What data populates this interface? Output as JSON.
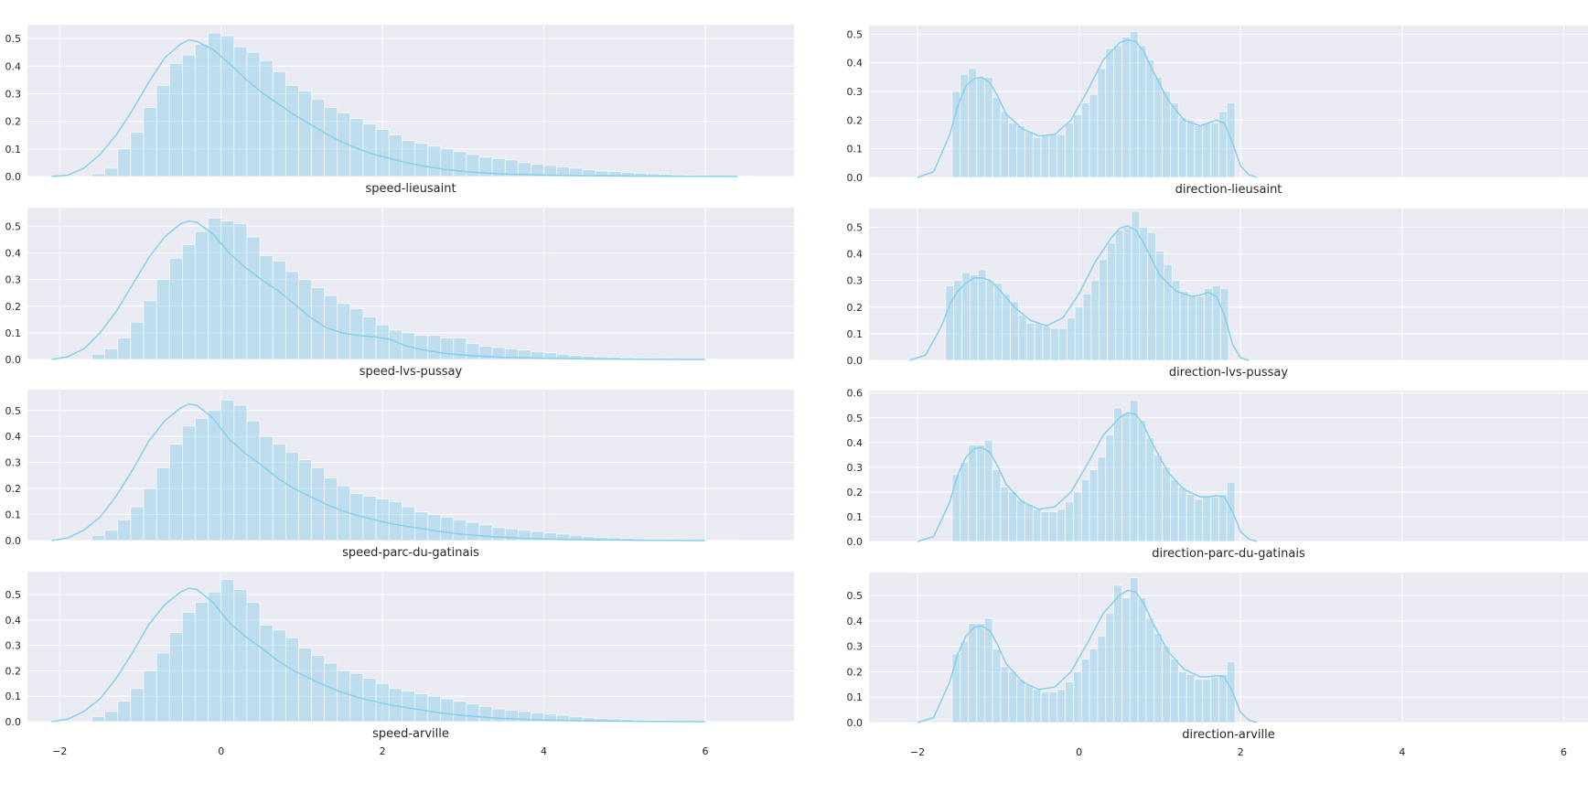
{
  "figure": {
    "background": "#ffffff",
    "axes_face": "#eaeaf2",
    "grid_color": "#ffffff",
    "hist_color": "#87ceeb",
    "hist_alpha": 0.45,
    "kde_color": "#87ceeb"
  },
  "chart_data": [
    {
      "type": "bar",
      "variant": "histogram+kde",
      "xlabel": "speed-lieusaint",
      "xlim": [
        -2.4,
        7.1
      ],
      "ylim": [
        0,
        0.55
      ],
      "yticks": [
        0.0,
        0.1,
        0.2,
        0.3,
        0.4,
        0.5
      ],
      "xticks": [
        -2,
        0,
        2,
        4,
        6
      ],
      "show_xticklabels": false,
      "hist": {
        "x_start": -1.6,
        "bin_width": 0.16,
        "values": [
          0.01,
          0.03,
          0.1,
          0.16,
          0.25,
          0.33,
          0.41,
          0.44,
          0.48,
          0.52,
          0.51,
          0.47,
          0.45,
          0.42,
          0.38,
          0.33,
          0.31,
          0.28,
          0.25,
          0.23,
          0.21,
          0.19,
          0.17,
          0.15,
          0.13,
          0.12,
          0.11,
          0.1,
          0.09,
          0.08,
          0.07,
          0.065,
          0.06,
          0.05,
          0.045,
          0.04,
          0.035,
          0.03,
          0.025,
          0.02,
          0.018,
          0.015,
          0.012,
          0.01,
          0.008,
          0.006,
          0.004,
          0.003,
          0.002,
          0.002,
          0.001,
          0.001
        ]
      },
      "kde": {
        "x": [
          -2.1,
          -1.9,
          -1.7,
          -1.5,
          -1.3,
          -1.1,
          -0.9,
          -0.7,
          -0.5,
          -0.4,
          -0.3,
          -0.1,
          0.1,
          0.3,
          0.5,
          0.7,
          0.9,
          1.1,
          1.3,
          1.5,
          1.7,
          1.9,
          2.1,
          2.3,
          2.5,
          2.8,
          3.1,
          3.5,
          4.0,
          4.5,
          5.0,
          5.5,
          6.0,
          6.4
        ],
        "y": [
          0.0,
          0.005,
          0.03,
          0.08,
          0.15,
          0.24,
          0.34,
          0.43,
          0.48,
          0.495,
          0.49,
          0.46,
          0.41,
          0.355,
          0.305,
          0.265,
          0.225,
          0.19,
          0.155,
          0.125,
          0.1,
          0.08,
          0.065,
          0.05,
          0.038,
          0.025,
          0.016,
          0.009,
          0.005,
          0.003,
          0.002,
          0.001,
          0.0005,
          0.0
        ]
      }
    },
    {
      "type": "bar",
      "variant": "histogram+kde",
      "xlabel": "direction-lieusaint",
      "xlim": [
        -2.6,
        6.3
      ],
      "ylim": [
        0,
        0.53
      ],
      "yticks": [
        0.0,
        0.1,
        0.2,
        0.3,
        0.4,
        0.5
      ],
      "xticks": [
        -2,
        0,
        2,
        4,
        6
      ],
      "show_xticklabels": false,
      "hist": {
        "x_start": -1.57,
        "bin_width": 0.1,
        "values": [
          0.3,
          0.36,
          0.38,
          0.35,
          0.35,
          0.28,
          0.23,
          0.19,
          0.18,
          0.16,
          0.14,
          0.15,
          0.15,
          0.15,
          0.19,
          0.22,
          0.26,
          0.29,
          0.38,
          0.45,
          0.46,
          0.49,
          0.51,
          0.46,
          0.41,
          0.35,
          0.3,
          0.26,
          0.21,
          0.2,
          0.18,
          0.19,
          0.19,
          0.23,
          0.26
        ]
      },
      "kde": {
        "x": [
          -2.0,
          -1.8,
          -1.6,
          -1.5,
          -1.4,
          -1.3,
          -1.2,
          -1.1,
          -1.0,
          -0.9,
          -0.7,
          -0.5,
          -0.3,
          -0.1,
          0.1,
          0.3,
          0.5,
          0.6,
          0.7,
          0.8,
          0.9,
          1.1,
          1.3,
          1.5,
          1.6,
          1.7,
          1.8,
          1.9,
          2.0,
          2.1,
          2.2
        ],
        "y": [
          0.0,
          0.02,
          0.15,
          0.25,
          0.32,
          0.345,
          0.35,
          0.33,
          0.28,
          0.22,
          0.17,
          0.145,
          0.15,
          0.2,
          0.3,
          0.41,
          0.47,
          0.48,
          0.475,
          0.44,
          0.38,
          0.27,
          0.2,
          0.18,
          0.19,
          0.2,
          0.19,
          0.12,
          0.04,
          0.01,
          0.0
        ]
      }
    },
    {
      "type": "bar",
      "variant": "histogram+kde",
      "xlabel": "speed-lvs-pussay",
      "xlim": [
        -2.4,
        7.1
      ],
      "ylim": [
        0,
        0.57
      ],
      "yticks": [
        0.0,
        0.1,
        0.2,
        0.3,
        0.4,
        0.5
      ],
      "xticks": [
        -2,
        0,
        2,
        4,
        6
      ],
      "show_xticklabels": false,
      "hist": {
        "x_start": -1.6,
        "bin_width": 0.16,
        "values": [
          0.02,
          0.04,
          0.08,
          0.14,
          0.22,
          0.3,
          0.38,
          0.43,
          0.48,
          0.53,
          0.52,
          0.51,
          0.46,
          0.39,
          0.37,
          0.33,
          0.3,
          0.27,
          0.24,
          0.21,
          0.19,
          0.16,
          0.13,
          0.11,
          0.1,
          0.09,
          0.09,
          0.08,
          0.08,
          0.06,
          0.05,
          0.045,
          0.04,
          0.035,
          0.03,
          0.025,
          0.02,
          0.015,
          0.012,
          0.01,
          0.008,
          0.006,
          0.005,
          0.004,
          0.003,
          0.002,
          0.002,
          0.001,
          0.001,
          0.001
        ]
      },
      "kde": {
        "x": [
          -2.1,
          -1.9,
          -1.7,
          -1.5,
          -1.3,
          -1.1,
          -0.9,
          -0.7,
          -0.5,
          -0.4,
          -0.3,
          -0.1,
          0.1,
          0.3,
          0.5,
          0.7,
          0.9,
          1.1,
          1.3,
          1.5,
          1.7,
          1.9,
          2.1,
          2.3,
          2.5,
          2.8,
          3.1,
          3.5,
          4.0,
          4.5,
          5.0,
          5.5,
          6.0
        ],
        "y": [
          0.0,
          0.01,
          0.04,
          0.1,
          0.18,
          0.28,
          0.38,
          0.46,
          0.51,
          0.52,
          0.515,
          0.47,
          0.4,
          0.345,
          0.3,
          0.26,
          0.21,
          0.16,
          0.12,
          0.1,
          0.09,
          0.085,
          0.075,
          0.05,
          0.036,
          0.022,
          0.014,
          0.008,
          0.004,
          0.002,
          0.001,
          0.0005,
          0.0
        ]
      }
    },
    {
      "type": "bar",
      "variant": "histogram+kde",
      "xlabel": "direction-lvs-pussay",
      "xlim": [
        -2.6,
        6.3
      ],
      "ylim": [
        0,
        0.57
      ],
      "yticks": [
        0.0,
        0.1,
        0.2,
        0.3,
        0.4,
        0.5
      ],
      "xticks": [
        -2,
        0,
        2,
        4,
        6
      ],
      "show_xticklabels": false,
      "hist": {
        "x_start": -1.65,
        "bin_width": 0.1,
        "values": [
          0.28,
          0.3,
          0.33,
          0.32,
          0.34,
          0.3,
          0.29,
          0.25,
          0.22,
          0.17,
          0.14,
          0.14,
          0.13,
          0.12,
          0.12,
          0.16,
          0.2,
          0.25,
          0.3,
          0.38,
          0.44,
          0.49,
          0.5,
          0.56,
          0.5,
          0.48,
          0.41,
          0.36,
          0.3,
          0.26,
          0.24,
          0.24,
          0.27,
          0.28,
          0.27
        ]
      },
      "kde": {
        "x": [
          -2.1,
          -1.9,
          -1.7,
          -1.6,
          -1.5,
          -1.4,
          -1.3,
          -1.2,
          -1.1,
          -1.0,
          -0.8,
          -0.6,
          -0.4,
          -0.2,
          0.0,
          0.2,
          0.4,
          0.5,
          0.6,
          0.7,
          0.8,
          0.9,
          1.0,
          1.2,
          1.4,
          1.5,
          1.6,
          1.7,
          1.8,
          1.9,
          2.0,
          2.1
        ],
        "y": [
          0.0,
          0.02,
          0.13,
          0.21,
          0.26,
          0.29,
          0.31,
          0.31,
          0.3,
          0.27,
          0.2,
          0.15,
          0.13,
          0.16,
          0.25,
          0.37,
          0.46,
          0.495,
          0.505,
          0.49,
          0.44,
          0.38,
          0.32,
          0.26,
          0.24,
          0.245,
          0.255,
          0.24,
          0.17,
          0.06,
          0.01,
          0.0
        ]
      }
    },
    {
      "type": "bar",
      "variant": "histogram+kde",
      "xlabel": "speed-parc-du-gatinais",
      "xlim": [
        -2.4,
        7.1
      ],
      "ylim": [
        0,
        0.58
      ],
      "yticks": [
        0.0,
        0.1,
        0.2,
        0.3,
        0.4,
        0.5
      ],
      "xticks": [
        -2,
        0,
        2,
        4,
        6
      ],
      "show_xticklabels": false,
      "hist": {
        "x_start": -1.6,
        "bin_width": 0.16,
        "values": [
          0.02,
          0.04,
          0.08,
          0.13,
          0.2,
          0.28,
          0.37,
          0.44,
          0.47,
          0.5,
          0.54,
          0.52,
          0.46,
          0.4,
          0.37,
          0.34,
          0.31,
          0.28,
          0.24,
          0.21,
          0.18,
          0.17,
          0.16,
          0.15,
          0.13,
          0.11,
          0.1,
          0.09,
          0.08,
          0.07,
          0.06,
          0.05,
          0.045,
          0.04,
          0.035,
          0.03,
          0.025,
          0.02,
          0.015,
          0.012,
          0.01,
          0.008,
          0.006,
          0.005,
          0.004,
          0.003,
          0.002,
          0.002,
          0.001,
          0.001
        ]
      },
      "kde": {
        "x": [
          -2.1,
          -1.9,
          -1.7,
          -1.5,
          -1.3,
          -1.1,
          -0.9,
          -0.7,
          -0.5,
          -0.4,
          -0.3,
          -0.1,
          0.1,
          0.3,
          0.5,
          0.7,
          0.9,
          1.1,
          1.3,
          1.5,
          1.7,
          1.9,
          2.1,
          2.4,
          2.7,
          3.0,
          3.4,
          3.8,
          4.3,
          4.8,
          5.3,
          6.0
        ],
        "y": [
          0.0,
          0.01,
          0.04,
          0.09,
          0.17,
          0.27,
          0.38,
          0.46,
          0.51,
          0.525,
          0.52,
          0.47,
          0.39,
          0.335,
          0.29,
          0.24,
          0.2,
          0.17,
          0.14,
          0.115,
          0.095,
          0.08,
          0.065,
          0.05,
          0.035,
          0.024,
          0.014,
          0.008,
          0.004,
          0.002,
          0.001,
          0.0
        ]
      }
    },
    {
      "type": "bar",
      "variant": "histogram+kde",
      "xlabel": "direction-parc-du-gatinais",
      "xlim": [
        -2.6,
        6.3
      ],
      "ylim": [
        0,
        0.61
      ],
      "yticks": [
        0.0,
        0.1,
        0.2,
        0.3,
        0.4,
        0.5,
        0.6
      ],
      "xticks": [
        -2,
        0,
        2,
        4,
        6
      ],
      "show_xticklabels": false,
      "hist": {
        "x_start": -1.57,
        "bin_width": 0.1,
        "values": [
          0.27,
          0.32,
          0.39,
          0.39,
          0.41,
          0.29,
          0.22,
          0.2,
          0.17,
          0.15,
          0.13,
          0.12,
          0.12,
          0.13,
          0.16,
          0.2,
          0.25,
          0.29,
          0.34,
          0.43,
          0.54,
          0.52,
          0.57,
          0.49,
          0.42,
          0.35,
          0.3,
          0.25,
          0.22,
          0.19,
          0.17,
          0.18,
          0.18,
          0.19,
          0.24
        ]
      },
      "kde": {
        "x": [
          -2.0,
          -1.8,
          -1.6,
          -1.5,
          -1.4,
          -1.3,
          -1.2,
          -1.1,
          -1.0,
          -0.9,
          -0.7,
          -0.5,
          -0.3,
          -0.1,
          0.1,
          0.3,
          0.5,
          0.6,
          0.7,
          0.8,
          0.9,
          1.1,
          1.3,
          1.5,
          1.6,
          1.7,
          1.8,
          1.9,
          2.0,
          2.1,
          2.2
        ],
        "y": [
          0.0,
          0.02,
          0.16,
          0.27,
          0.34,
          0.375,
          0.38,
          0.36,
          0.3,
          0.23,
          0.16,
          0.13,
          0.14,
          0.2,
          0.31,
          0.43,
          0.5,
          0.52,
          0.515,
          0.47,
          0.4,
          0.28,
          0.21,
          0.18,
          0.18,
          0.185,
          0.18,
          0.12,
          0.04,
          0.01,
          0.0
        ]
      }
    },
    {
      "type": "bar",
      "variant": "histogram+kde",
      "xlabel": "speed-arville",
      "xlim": [
        -2.4,
        7.1
      ],
      "ylim": [
        0,
        0.59
      ],
      "yticks": [
        0.0,
        0.1,
        0.2,
        0.3,
        0.4,
        0.5
      ],
      "xticks": [
        -2,
        0,
        2,
        4,
        6
      ],
      "show_xticklabels": true,
      "hist": {
        "x_start": -1.6,
        "bin_width": 0.16,
        "values": [
          0.02,
          0.04,
          0.08,
          0.13,
          0.2,
          0.27,
          0.35,
          0.43,
          0.47,
          0.51,
          0.56,
          0.52,
          0.47,
          0.38,
          0.36,
          0.33,
          0.29,
          0.26,
          0.23,
          0.2,
          0.19,
          0.17,
          0.15,
          0.13,
          0.12,
          0.11,
          0.1,
          0.09,
          0.08,
          0.07,
          0.06,
          0.05,
          0.045,
          0.04,
          0.035,
          0.03,
          0.025,
          0.02,
          0.015,
          0.012,
          0.01,
          0.008,
          0.006,
          0.005,
          0.004,
          0.003,
          0.002,
          0.002,
          0.001,
          0.001
        ]
      },
      "kde": {
        "x": [
          -2.1,
          -1.9,
          -1.7,
          -1.5,
          -1.3,
          -1.1,
          -0.9,
          -0.7,
          -0.5,
          -0.4,
          -0.3,
          -0.1,
          0.1,
          0.3,
          0.5,
          0.7,
          0.9,
          1.1,
          1.3,
          1.5,
          1.7,
          1.9,
          2.1,
          2.4,
          2.7,
          3.0,
          3.4,
          3.8,
          4.3,
          4.8,
          5.3,
          6.0
        ],
        "y": [
          0.0,
          0.01,
          0.04,
          0.09,
          0.17,
          0.27,
          0.38,
          0.46,
          0.51,
          0.525,
          0.52,
          0.47,
          0.39,
          0.335,
          0.29,
          0.24,
          0.2,
          0.17,
          0.14,
          0.115,
          0.095,
          0.08,
          0.065,
          0.05,
          0.035,
          0.024,
          0.014,
          0.008,
          0.004,
          0.002,
          0.001,
          0.0
        ]
      }
    },
    {
      "type": "bar",
      "variant": "histogram+kde",
      "xlabel": "direction-arville",
      "xlim": [
        -2.6,
        6.3
      ],
      "ylim": [
        0,
        0.59
      ],
      "yticks": [
        0.0,
        0.1,
        0.2,
        0.3,
        0.4,
        0.5
      ],
      "xticks": [
        -2,
        0,
        2,
        4,
        6
      ],
      "show_xticklabels": true,
      "hist": {
        "x_start": -1.57,
        "bin_width": 0.1,
        "values": [
          0.27,
          0.32,
          0.39,
          0.39,
          0.41,
          0.29,
          0.22,
          0.2,
          0.17,
          0.15,
          0.13,
          0.12,
          0.12,
          0.13,
          0.16,
          0.2,
          0.25,
          0.29,
          0.34,
          0.43,
          0.54,
          0.49,
          0.57,
          0.49,
          0.41,
          0.35,
          0.3,
          0.25,
          0.2,
          0.19,
          0.17,
          0.17,
          0.18,
          0.19,
          0.24
        ]
      },
      "kde": {
        "x": [
          -2.0,
          -1.8,
          -1.6,
          -1.5,
          -1.4,
          -1.3,
          -1.2,
          -1.1,
          -1.0,
          -0.9,
          -0.7,
          -0.5,
          -0.3,
          -0.1,
          0.1,
          0.3,
          0.5,
          0.6,
          0.7,
          0.8,
          0.9,
          1.1,
          1.3,
          1.5,
          1.6,
          1.7,
          1.8,
          1.9,
          2.0,
          2.1,
          2.2
        ],
        "y": [
          0.0,
          0.02,
          0.16,
          0.27,
          0.34,
          0.375,
          0.38,
          0.36,
          0.3,
          0.23,
          0.16,
          0.13,
          0.14,
          0.2,
          0.31,
          0.43,
          0.5,
          0.52,
          0.515,
          0.47,
          0.4,
          0.28,
          0.21,
          0.18,
          0.18,
          0.185,
          0.18,
          0.12,
          0.04,
          0.01,
          0.0
        ]
      }
    }
  ]
}
